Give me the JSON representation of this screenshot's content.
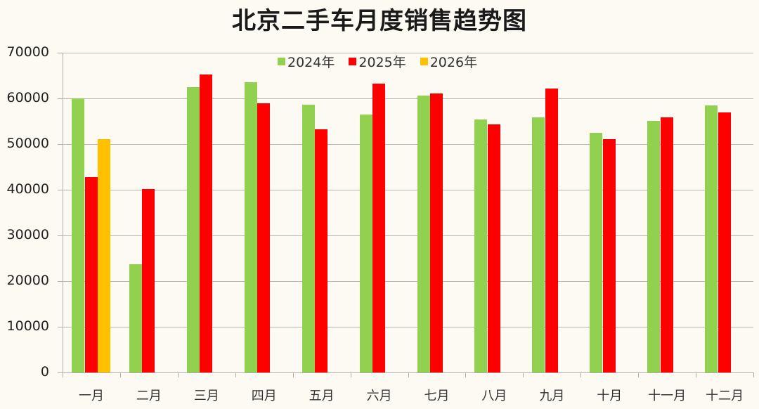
{
  "chart_data": {
    "type": "bar",
    "title": "北京二手车月度销售趋势图",
    "xlabel": "",
    "ylabel": "",
    "ylim": [
      0,
      70000
    ],
    "yticks": [
      0,
      10000,
      20000,
      30000,
      40000,
      50000,
      60000,
      70000
    ],
    "grid": true,
    "legend_position": "top-inside",
    "categories": [
      "一月",
      "二月",
      "三月",
      "四月",
      "五月",
      "六月",
      "七月",
      "八月",
      "九月",
      "十月",
      "十一月",
      "十二月"
    ],
    "series": [
      {
        "name": "2024年",
        "color": "#92d050",
        "values": [
          60000,
          23700,
          62500,
          63600,
          58600,
          56400,
          60600,
          55400,
          55900,
          52400,
          55100,
          58400
        ]
      },
      {
        "name": "2025年",
        "color": "#ff0000",
        "values": [
          42700,
          40200,
          65300,
          59000,
          53300,
          63200,
          61100,
          54300,
          62200,
          51100,
          55800,
          56900
        ]
      },
      {
        "name": "2026年",
        "color": "#ffc000",
        "values": [
          51100,
          null,
          null,
          null,
          null,
          null,
          null,
          null,
          null,
          null,
          null,
          null
        ]
      }
    ]
  }
}
